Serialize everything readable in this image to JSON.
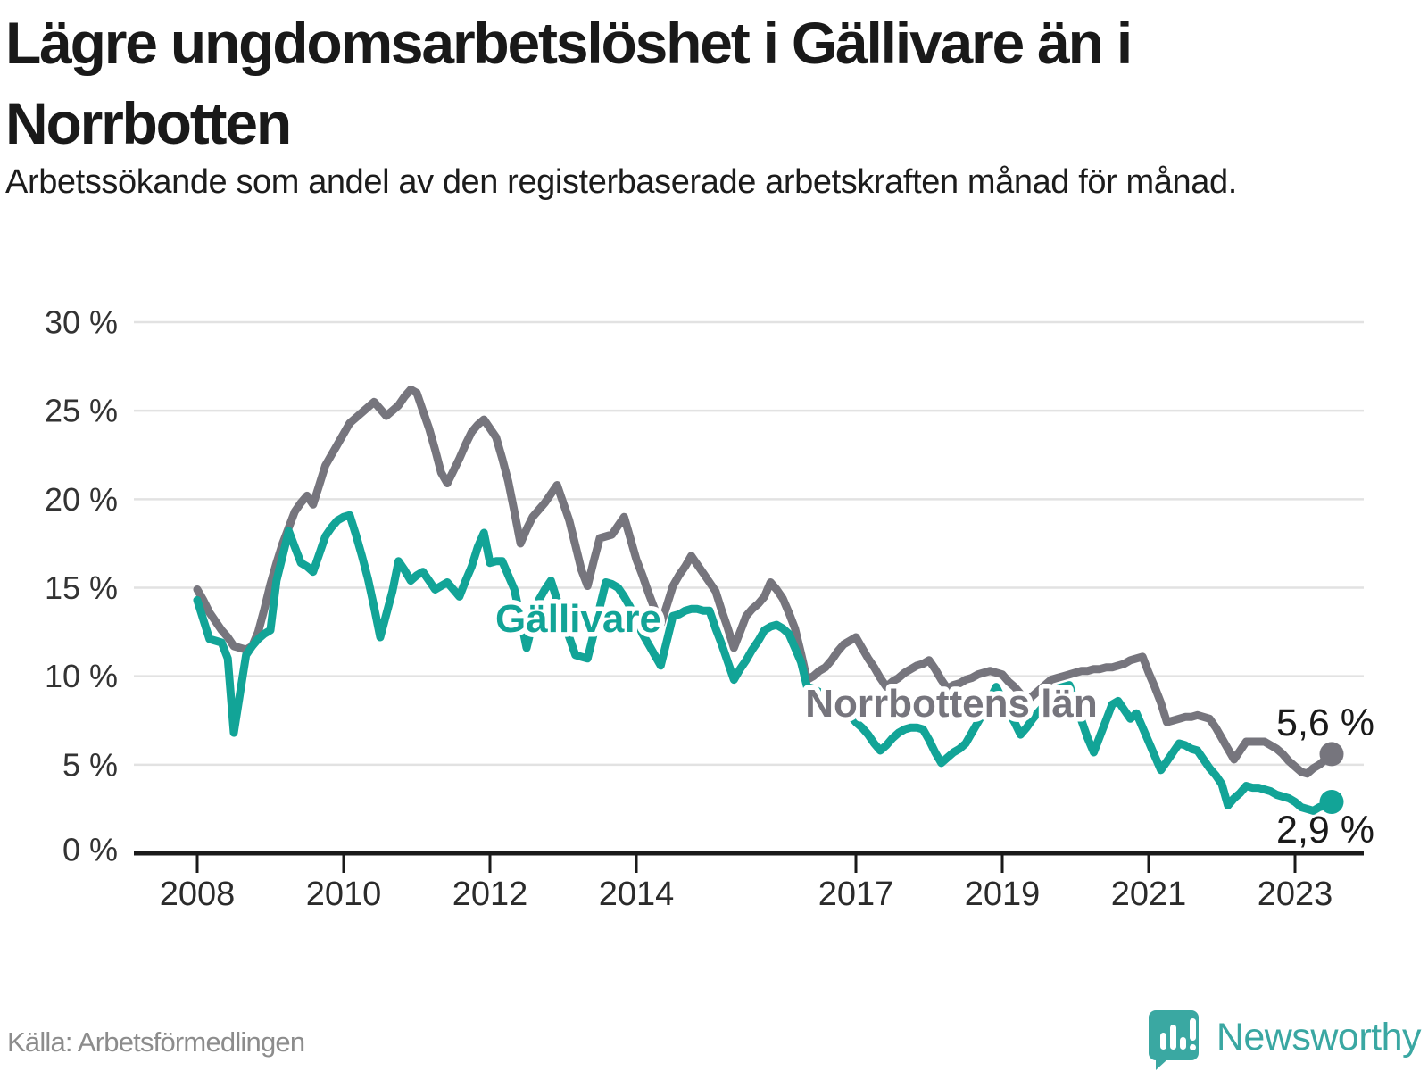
{
  "header": {
    "title": "Lägre ungdomsarbetslöshet i Gällivare än i Norrbotten",
    "subtitle": "Arbetssökande som andel av den registerbaserade arbetskraften månad för månad."
  },
  "footer": {
    "source": "Källa: Arbetsförmedlingen",
    "brand": "Newsworthy"
  },
  "colors": {
    "gallivare": "#12a497",
    "norrbotten": "#76757d",
    "grid": "#e2e2e2",
    "axis": "#1a1a1a",
    "tick_label": "#333333",
    "annotation": "#1a1a1a",
    "source_text": "#8c8c8c",
    "brand_teal": "#3aa7a2",
    "background": "#ffffff"
  },
  "chart_data": {
    "type": "line",
    "title": "Lägre ungdomsarbetslöshet i Gällivare än i Norrbotten",
    "subtitle": "Arbetssökande som andel av den registerbaserade arbetskraften månad för månad.",
    "x_start": "2008-01",
    "x_end": "2023-07",
    "x_interval": "monthly",
    "xlabel": "",
    "ylabel": "",
    "ylim": [
      0,
      30
    ],
    "grid": "horizontal",
    "legend": "inline-labels",
    "y_ticks": [
      {
        "label": "30 %",
        "value": 30
      },
      {
        "label": "25 %",
        "value": 25
      },
      {
        "label": "20 %",
        "value": 20
      },
      {
        "label": "15 %",
        "value": 15
      },
      {
        "label": "10 %",
        "value": 10
      },
      {
        "label": "5 %",
        "value": 5
      },
      {
        "label": "0 %",
        "value": 0
      }
    ],
    "x_ticks": [
      {
        "label": "2008",
        "year": 2008
      },
      {
        "label": "2010",
        "year": 2010
      },
      {
        "label": "2012",
        "year": 2012
      },
      {
        "label": "2014",
        "year": 2014
      },
      {
        "label": "2017",
        "year": 2017
      },
      {
        "label": "2019",
        "year": 2019
      },
      {
        "label": "2021",
        "year": 2021
      },
      {
        "label": "2023",
        "year": 2023
      }
    ],
    "series": [
      {
        "name": "Norrbottens län",
        "color": "#76757d",
        "end_label": "5,6 %",
        "end_value": 5.6,
        "values": [
          14.9,
          14.3,
          13.6,
          13.1,
          12.6,
          12.2,
          11.7,
          11.6,
          11.5,
          11.7,
          12.5,
          13.8,
          15.2,
          16.4,
          17.5,
          18.4,
          19.3,
          19.8,
          20.2,
          19.7,
          20.8,
          21.9,
          22.5,
          23.1,
          23.7,
          24.3,
          24.6,
          24.9,
          25.2,
          25.5,
          25.1,
          24.7,
          25.0,
          25.3,
          25.8,
          26.2,
          26.0,
          25.0,
          24.0,
          22.8,
          21.5,
          20.9,
          21.6,
          22.3,
          23.1,
          23.8,
          24.2,
          24.5,
          24.0,
          23.5,
          22.3,
          21.0,
          19.3,
          17.5,
          18.3,
          19.0,
          19.4,
          19.8,
          20.3,
          20.8,
          19.8,
          18.8,
          17.4,
          16.0,
          15.1,
          16.5,
          17.8,
          17.9,
          18.0,
          18.5,
          19.0,
          17.8,
          16.6,
          15.7,
          14.7,
          13.8,
          12.9,
          14.0,
          15.1,
          15.7,
          16.2,
          16.8,
          16.3,
          15.8,
          15.3,
          14.8,
          13.7,
          12.7,
          11.6,
          12.5,
          13.4,
          13.8,
          14.1,
          14.5,
          15.3,
          14.9,
          14.4,
          13.6,
          12.7,
          11.3,
          9.8,
          10.0,
          10.3,
          10.5,
          10.9,
          11.4,
          11.8,
          12.0,
          12.2,
          11.6,
          11.0,
          10.5,
          9.9,
          9.4,
          9.7,
          9.9,
          10.2,
          10.4,
          10.6,
          10.7,
          10.9,
          10.4,
          9.8,
          9.3,
          9.5,
          9.6,
          9.8,
          9.9,
          10.1,
          10.2,
          10.3,
          10.2,
          10.1,
          9.7,
          9.4,
          9.0,
          8.6,
          8.9,
          9.2,
          9.5,
          9.8,
          9.9,
          10.0,
          10.1,
          10.2,
          10.3,
          10.3,
          10.4,
          10.4,
          10.5,
          10.5,
          10.6,
          10.7,
          10.9,
          11.0,
          11.1,
          10.2,
          9.4,
          8.5,
          7.4,
          7.5,
          7.6,
          7.7,
          7.7,
          7.8,
          7.7,
          7.6,
          7.1,
          6.5,
          5.9,
          5.3,
          5.8,
          6.3,
          6.3,
          6.3,
          6.3,
          6.1,
          5.9,
          5.6,
          5.2,
          4.9,
          4.6,
          4.5,
          4.8,
          5.0,
          5.3,
          5.6
        ]
      },
      {
        "name": "Gällivare",
        "color": "#12a497",
        "end_label": "2,9 %",
        "end_value": 2.9,
        "values": [
          14.3,
          13.2,
          12.1,
          12.0,
          11.9,
          11.0,
          6.8,
          9.0,
          11.2,
          11.7,
          12.1,
          12.4,
          12.6,
          15.4,
          16.8,
          18.2,
          17.3,
          16.4,
          16.2,
          15.9,
          16.9,
          17.9,
          18.4,
          18.8,
          19.0,
          19.1,
          18.0,
          16.8,
          15.5,
          13.9,
          12.2,
          13.5,
          14.8,
          16.5,
          16.0,
          15.4,
          15.7,
          15.9,
          15.4,
          14.9,
          15.1,
          15.3,
          14.9,
          14.5,
          15.4,
          16.2,
          17.3,
          18.1,
          16.4,
          16.5,
          16.5,
          15.7,
          14.9,
          13.3,
          11.6,
          13.0,
          14.3,
          14.9,
          15.4,
          14.3,
          13.2,
          12.2,
          11.2,
          11.1,
          11.0,
          12.4,
          13.9,
          15.3,
          15.2,
          15.0,
          14.5,
          13.9,
          13.2,
          12.4,
          11.8,
          11.2,
          10.6,
          12.0,
          13.4,
          13.5,
          13.7,
          13.8,
          13.8,
          13.7,
          13.7,
          12.7,
          11.8,
          10.8,
          9.8,
          10.4,
          10.9,
          11.5,
          12.0,
          12.6,
          12.8,
          12.9,
          12.7,
          12.4,
          11.6,
          10.8,
          9.4,
          9.3,
          9.1,
          9.0,
          8.7,
          8.4,
          8.1,
          7.8,
          7.4,
          7.1,
          6.7,
          6.2,
          5.8,
          6.1,
          6.5,
          6.8,
          7.0,
          7.1,
          7.1,
          7.0,
          6.4,
          5.7,
          5.1,
          5.4,
          5.7,
          5.9,
          6.2,
          6.8,
          7.4,
          8.0,
          8.7,
          9.4,
          8.7,
          8.0,
          7.4,
          6.7,
          7.1,
          7.6,
          8.0,
          8.4,
          8.9,
          9.3,
          9.4,
          9.5,
          8.5,
          7.5,
          6.5,
          5.7,
          6.6,
          7.5,
          8.4,
          8.6,
          8.1,
          7.6,
          7.9,
          7.1,
          6.3,
          5.5,
          4.7,
          5.2,
          5.7,
          6.2,
          6.1,
          5.9,
          5.8,
          5.3,
          4.8,
          4.4,
          3.9,
          2.7,
          3.1,
          3.4,
          3.8,
          3.7,
          3.7,
          3.6,
          3.5,
          3.3,
          3.2,
          3.1,
          2.9,
          2.6,
          2.5,
          2.4,
          2.6,
          2.7,
          2.9
        ]
      }
    ]
  }
}
